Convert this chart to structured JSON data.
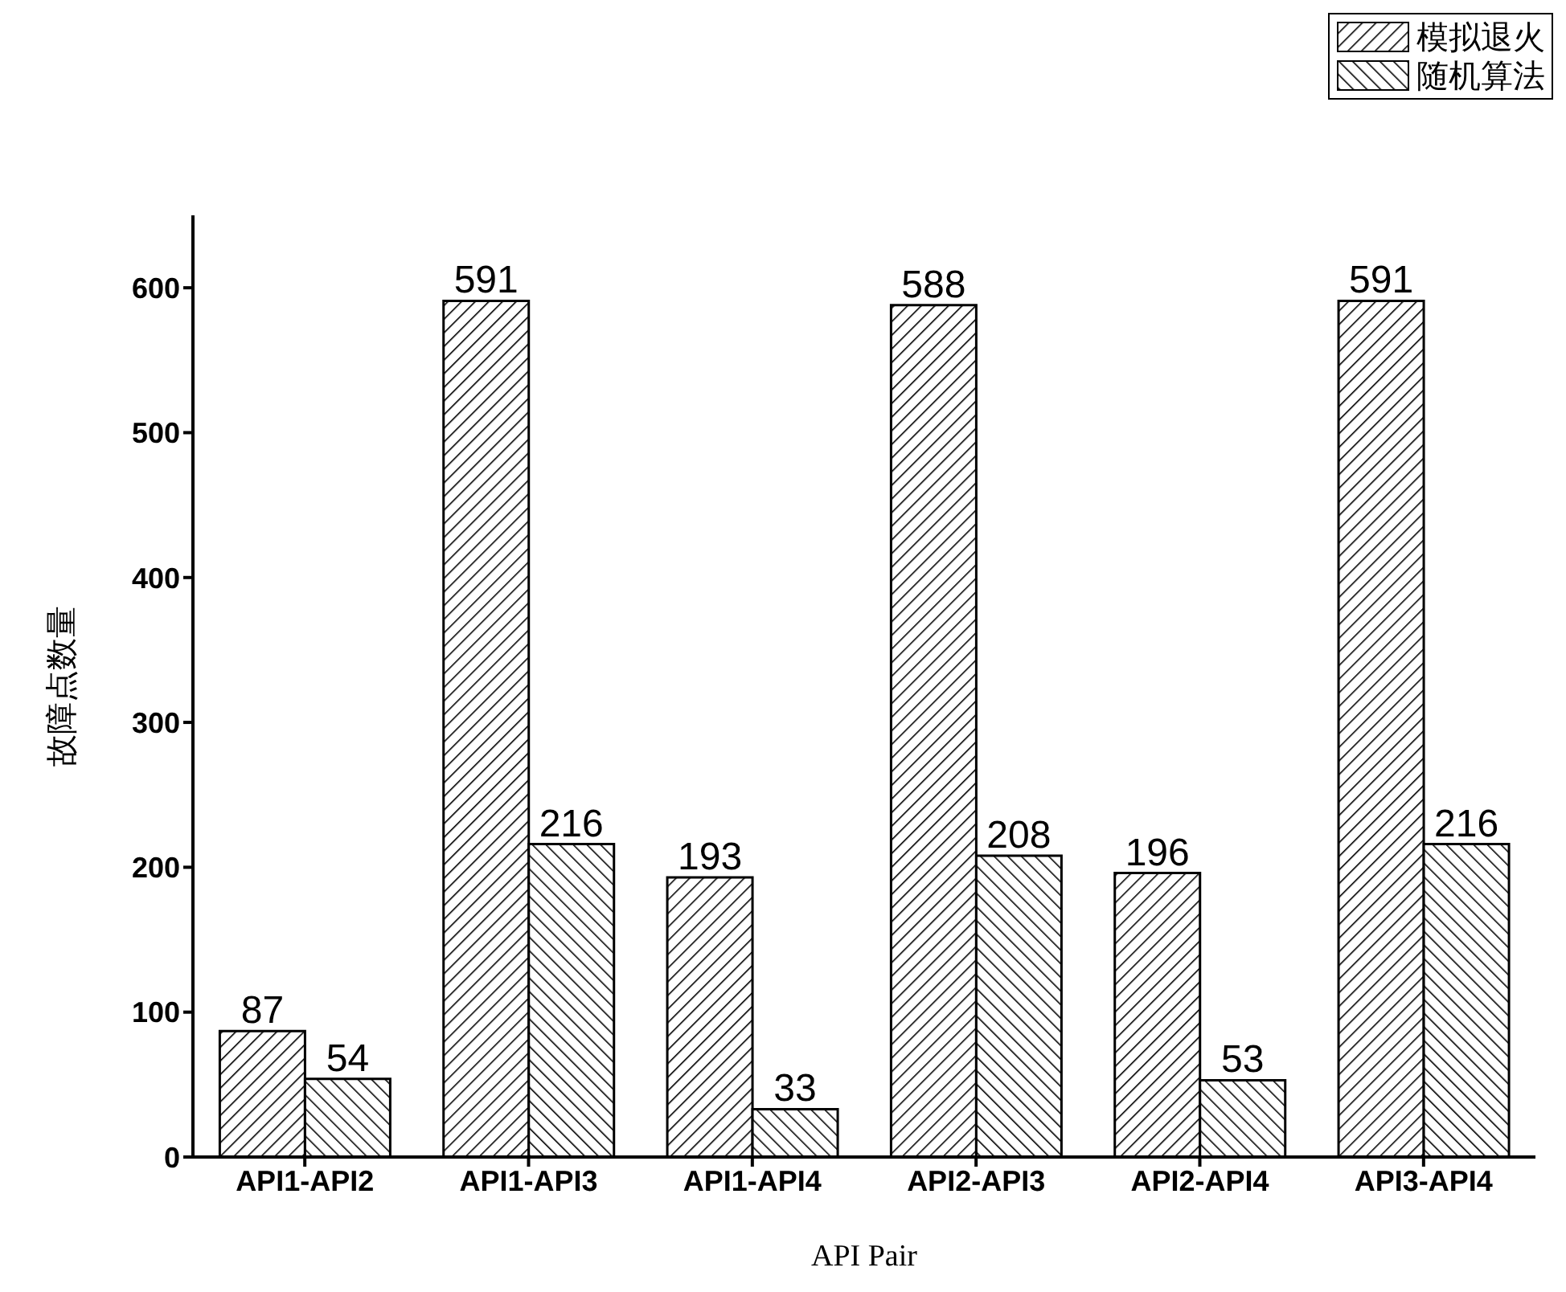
{
  "chart_data": {
    "type": "bar",
    "xlabel": "API Pair",
    "ylabel": "故障点数量",
    "categories": [
      "API1-API2",
      "API1-API3",
      "API1-API4",
      "API2-API3",
      "API2-API4",
      "API3-API4"
    ],
    "series": [
      {
        "name": "模拟退火",
        "color": "#000000",
        "values": [
          87,
          591,
          193,
          588,
          196,
          591
        ]
      },
      {
        "name": "随机算法",
        "color": "#000000",
        "values": [
          54,
          216,
          33,
          208,
          53,
          216
        ]
      }
    ],
    "ylim": [
      0,
      650
    ],
    "yticks": [
      0,
      100,
      200,
      300,
      400,
      500,
      600
    ],
    "legend": "top right",
    "data_labels": true
  }
}
